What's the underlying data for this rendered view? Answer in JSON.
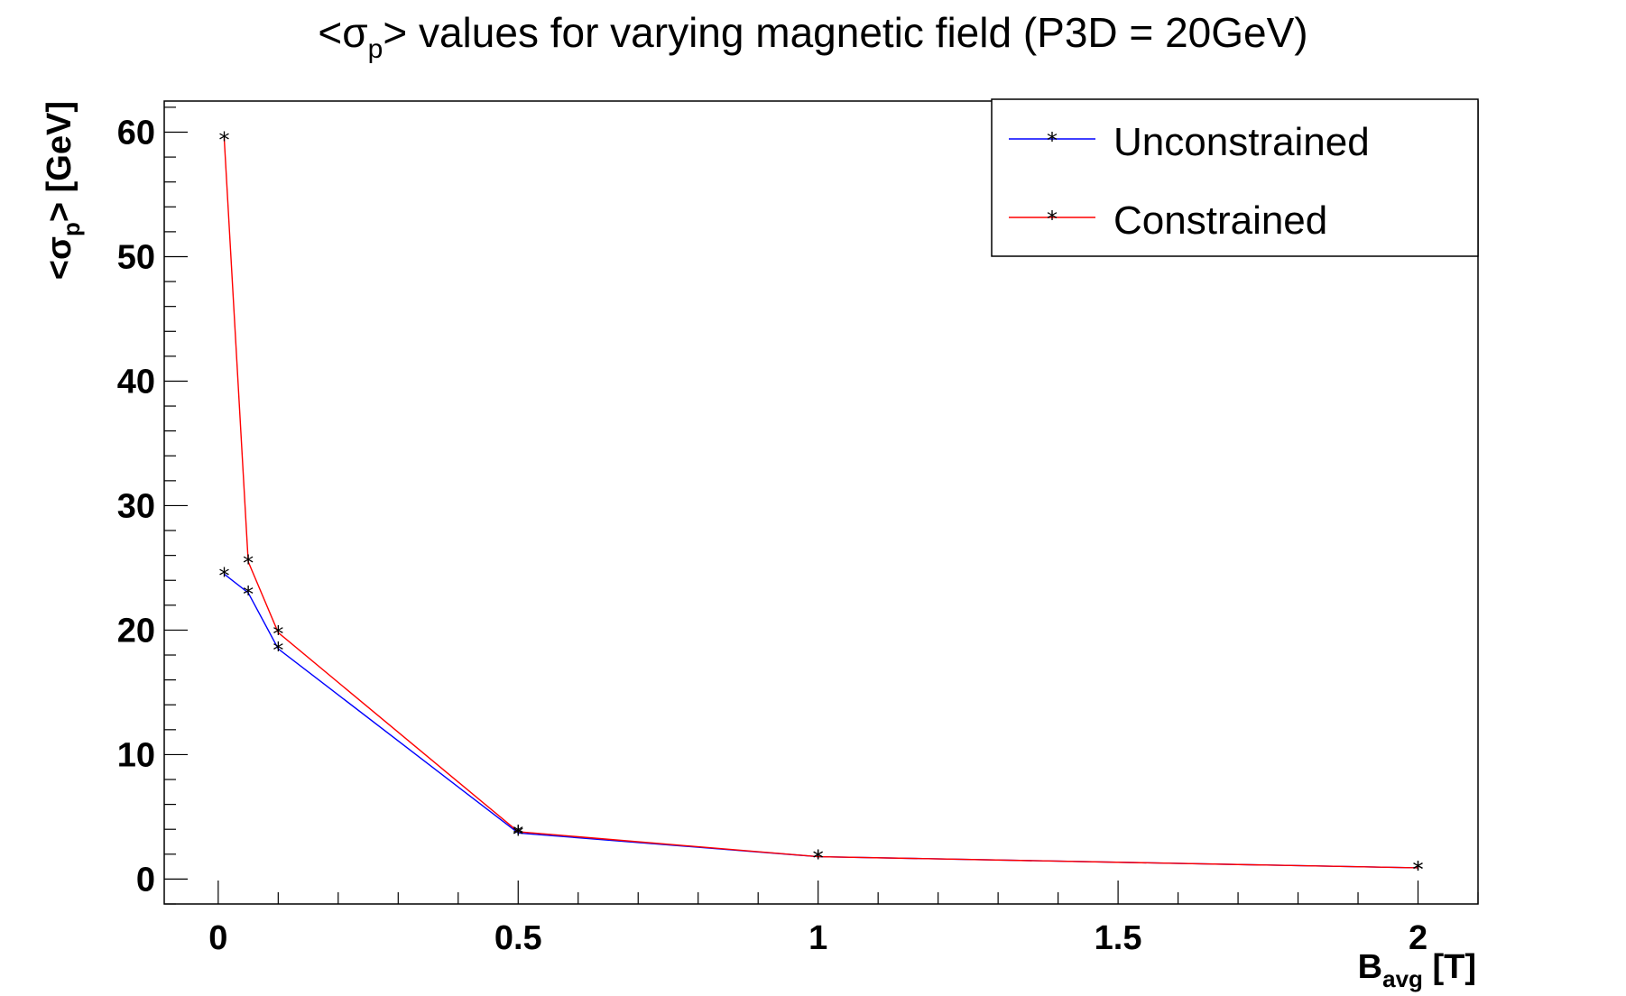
{
  "chart_data": {
    "type": "line",
    "title": "<σp> values for varying magnetic field (P3D = 20GeV)",
    "title_parts": {
      "pre": "<σ",
      "sub": "p",
      "post": "> values for varying magnetic field (P3D = 20GeV)"
    },
    "xlabel": "Bavg [T]",
    "xlabel_parts": {
      "main": "B",
      "sub": "avg",
      "post": " [T]"
    },
    "ylabel": "<σp> [GeV]",
    "ylabel_parts": {
      "pre": "<σ",
      "sub": "p",
      "post": "> [GeV]"
    },
    "xlim": [
      -0.09,
      2.1
    ],
    "ylim": [
      -2,
      62.5
    ],
    "x_ticks": [
      0,
      0.5,
      1,
      1.5,
      2
    ],
    "x_tick_labels": [
      "0",
      "0.5",
      "1",
      "1.5",
      "2"
    ],
    "y_ticks": [
      0,
      10,
      20,
      30,
      40,
      50,
      60
    ],
    "y_tick_labels": [
      "0",
      "10",
      "20",
      "30",
      "40",
      "50",
      "60"
    ],
    "grid": false,
    "legend_position": "top-right",
    "series": [
      {
        "name": "Unconstrained",
        "color": "#0000ff",
        "x": [
          0.01,
          0.05,
          0.1,
          0.5,
          1,
          2
        ],
        "y": [
          24.5,
          23.0,
          18.5,
          3.7,
          1.8,
          0.9
        ]
      },
      {
        "name": "Constrained",
        "color": "#ff0000",
        "x": [
          0.01,
          0.05,
          0.1,
          0.5,
          1,
          2
        ],
        "y": [
          59.5,
          25.5,
          19.8,
          3.8,
          1.8,
          0.9
        ]
      }
    ]
  }
}
